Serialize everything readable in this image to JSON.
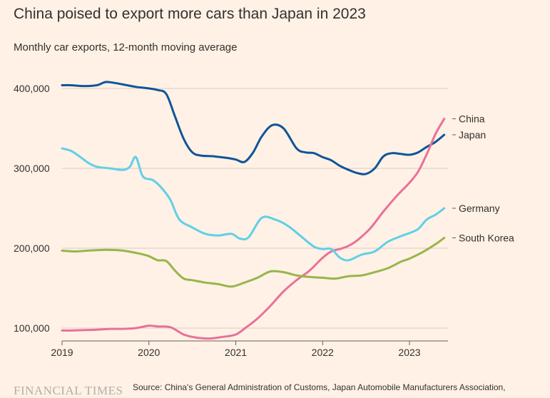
{
  "header": {
    "title": "China poised to export more cars than Japan in 2023",
    "subtitle": "Monthly car exports, 12-month moving average"
  },
  "footer": {
    "brand": "FINANCIAL TIMES",
    "source": "Source: China's General Administration of Customs, Japan Automobile Manufacturers Association,"
  },
  "chart_data": {
    "type": "line",
    "title": "China poised to export more cars than Japan in 2023",
    "subtitle": "Monthly car exports, 12-month moving average",
    "xlabel": "",
    "ylabel": "",
    "x_ticks": [
      "2019",
      "2020",
      "2021",
      "2022",
      "2023"
    ],
    "y_ticks": [
      100000,
      200000,
      300000,
      400000
    ],
    "y_tick_labels": [
      "100,000",
      "200,000",
      "300,000",
      "400,000"
    ],
    "xlim": [
      2019.0,
      2023.45
    ],
    "ylim": [
      90000,
      430000
    ],
    "grid": true,
    "legend": "direct labels at line ends (right)",
    "series": [
      {
        "name": "Japan",
        "color": "#0F5499",
        "points": [
          [
            2019.0,
            404000
          ],
          [
            2019.1,
            404000
          ],
          [
            2019.25,
            403000
          ],
          [
            2019.4,
            404000
          ],
          [
            2019.5,
            408000
          ],
          [
            2019.6,
            407000
          ],
          [
            2019.75,
            404000
          ],
          [
            2019.85,
            402000
          ],
          [
            2020.0,
            400000
          ],
          [
            2020.1,
            398000
          ],
          [
            2020.2,
            393000
          ],
          [
            2020.3,
            365000
          ],
          [
            2020.4,
            337000
          ],
          [
            2020.5,
            320000
          ],
          [
            2020.6,
            316000
          ],
          [
            2020.75,
            315000
          ],
          [
            2020.9,
            313000
          ],
          [
            2021.0,
            311000
          ],
          [
            2021.1,
            308000
          ],
          [
            2021.2,
            320000
          ],
          [
            2021.3,
            340000
          ],
          [
            2021.42,
            354000
          ],
          [
            2021.55,
            350000
          ],
          [
            2021.7,
            325000
          ],
          [
            2021.8,
            320000
          ],
          [
            2021.9,
            319000
          ],
          [
            2022.0,
            314000
          ],
          [
            2022.1,
            310000
          ],
          [
            2022.2,
            303000
          ],
          [
            2022.3,
            298000
          ],
          [
            2022.4,
            294000
          ],
          [
            2022.5,
            293000
          ],
          [
            2022.6,
            300000
          ],
          [
            2022.7,
            315000
          ],
          [
            2022.8,
            319000
          ],
          [
            2022.9,
            318000
          ],
          [
            2023.0,
            317000
          ],
          [
            2023.1,
            320000
          ],
          [
            2023.2,
            327000
          ],
          [
            2023.3,
            333000
          ],
          [
            2023.4,
            342000
          ]
        ]
      },
      {
        "name": "China",
        "color": "#E8719A",
        "points": [
          [
            2019.0,
            97000
          ],
          [
            2019.1,
            97000
          ],
          [
            2019.25,
            97500
          ],
          [
            2019.4,
            98000
          ],
          [
            2019.55,
            99000
          ],
          [
            2019.7,
            99000
          ],
          [
            2019.85,
            100000
          ],
          [
            2020.0,
            103000
          ],
          [
            2020.1,
            102000
          ],
          [
            2020.25,
            101000
          ],
          [
            2020.4,
            92000
          ],
          [
            2020.55,
            88000
          ],
          [
            2020.7,
            87000
          ],
          [
            2020.85,
            89000
          ],
          [
            2021.0,
            92000
          ],
          [
            2021.12,
            101000
          ],
          [
            2021.25,
            112000
          ],
          [
            2021.4,
            128000
          ],
          [
            2021.55,
            146000
          ],
          [
            2021.7,
            160000
          ],
          [
            2021.85,
            172000
          ],
          [
            2022.0,
            188000
          ],
          [
            2022.1,
            196000
          ],
          [
            2022.2,
            199000
          ],
          [
            2022.3,
            203000
          ],
          [
            2022.4,
            210000
          ],
          [
            2022.55,
            225000
          ],
          [
            2022.7,
            246000
          ],
          [
            2022.85,
            265000
          ],
          [
            2023.0,
            282000
          ],
          [
            2023.1,
            296000
          ],
          [
            2023.2,
            318000
          ],
          [
            2023.3,
            343000
          ],
          [
            2023.4,
            362000
          ]
        ]
      },
      {
        "name": "Germany",
        "color": "#5FD0E8",
        "points": [
          [
            2019.0,
            325000
          ],
          [
            2019.1,
            322000
          ],
          [
            2019.2,
            315000
          ],
          [
            2019.3,
            307000
          ],
          [
            2019.4,
            302000
          ],
          [
            2019.55,
            300000
          ],
          [
            2019.7,
            298000
          ],
          [
            2019.78,
            302000
          ],
          [
            2019.85,
            314000
          ],
          [
            2019.93,
            290000
          ],
          [
            2020.05,
            285000
          ],
          [
            2020.15,
            275000
          ],
          [
            2020.25,
            260000
          ],
          [
            2020.35,
            236000
          ],
          [
            2020.5,
            226000
          ],
          [
            2020.65,
            218000
          ],
          [
            2020.8,
            216000
          ],
          [
            2020.95,
            218000
          ],
          [
            2021.05,
            212000
          ],
          [
            2021.15,
            214000
          ],
          [
            2021.3,
            238000
          ],
          [
            2021.45,
            236000
          ],
          [
            2021.6,
            228000
          ],
          [
            2021.75,
            215000
          ],
          [
            2021.9,
            202000
          ],
          [
            2022.0,
            199000
          ],
          [
            2022.1,
            199000
          ],
          [
            2022.2,
            188000
          ],
          [
            2022.3,
            185000
          ],
          [
            2022.45,
            192000
          ],
          [
            2022.6,
            196000
          ],
          [
            2022.75,
            208000
          ],
          [
            2022.9,
            215000
          ],
          [
            2023.0,
            219000
          ],
          [
            2023.1,
            224000
          ],
          [
            2023.2,
            236000
          ],
          [
            2023.3,
            242000
          ],
          [
            2023.4,
            250000
          ]
        ]
      },
      {
        "name": "South Korea",
        "color": "#96B64B",
        "points": [
          [
            2019.0,
            197000
          ],
          [
            2019.15,
            196000
          ],
          [
            2019.3,
            197000
          ],
          [
            2019.5,
            198000
          ],
          [
            2019.7,
            197000
          ],
          [
            2019.9,
            193000
          ],
          [
            2020.0,
            190000
          ],
          [
            2020.1,
            185000
          ],
          [
            2020.2,
            184000
          ],
          [
            2020.3,
            172000
          ],
          [
            2020.4,
            162000
          ],
          [
            2020.5,
            160000
          ],
          [
            2020.65,
            157000
          ],
          [
            2020.8,
            155000
          ],
          [
            2020.95,
            152000
          ],
          [
            2021.1,
            157000
          ],
          [
            2021.25,
            163000
          ],
          [
            2021.4,
            171000
          ],
          [
            2021.55,
            170000
          ],
          [
            2021.7,
            166000
          ],
          [
            2021.85,
            164000
          ],
          [
            2022.0,
            163000
          ],
          [
            2022.15,
            162000
          ],
          [
            2022.3,
            165000
          ],
          [
            2022.45,
            166000
          ],
          [
            2022.6,
            170000
          ],
          [
            2022.75,
            175000
          ],
          [
            2022.9,
            183000
          ],
          [
            2023.0,
            187000
          ],
          [
            2023.15,
            195000
          ],
          [
            2023.3,
            205000
          ],
          [
            2023.4,
            213000
          ]
        ]
      }
    ]
  }
}
